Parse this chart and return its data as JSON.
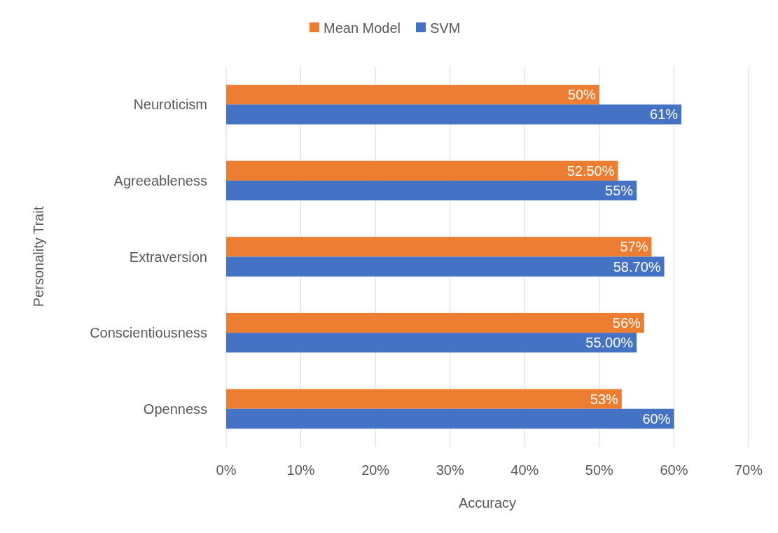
{
  "chart_data": {
    "type": "bar",
    "orientation": "horizontal",
    "xlabel": "Accuracy",
    "ylabel": "Personality Trait",
    "categories": [
      "Neuroticism",
      "Agreeableness",
      "Extraversion",
      "Conscientiousness",
      "Openness"
    ],
    "series": [
      {
        "name": "Mean Model",
        "color": "#ed7d31",
        "values": [
          50,
          52.5,
          57,
          56,
          53
        ],
        "value_labels": [
          "50%",
          "52.50%",
          "57%",
          "56%",
          "53%"
        ]
      },
      {
        "name": "SVM",
        "color": "#4472c4",
        "values": [
          61,
          55,
          58.7,
          55,
          60
        ],
        "value_labels": [
          "61%",
          "55%",
          "58.70%",
          "55.00%",
          "60%"
        ]
      }
    ],
    "xlim": [
      0,
      70
    ],
    "xticks": [
      {
        "value": 0,
        "label": "0%"
      },
      {
        "value": 10,
        "label": "10%"
      },
      {
        "value": 20,
        "label": "20%"
      },
      {
        "value": 30,
        "label": "30%"
      },
      {
        "value": 40,
        "label": "40%"
      },
      {
        "value": 50,
        "label": "50%"
      },
      {
        "value": 60,
        "label": "60%"
      },
      {
        "value": 70,
        "label": "70%"
      }
    ],
    "grid": "x",
    "legend": "top"
  }
}
